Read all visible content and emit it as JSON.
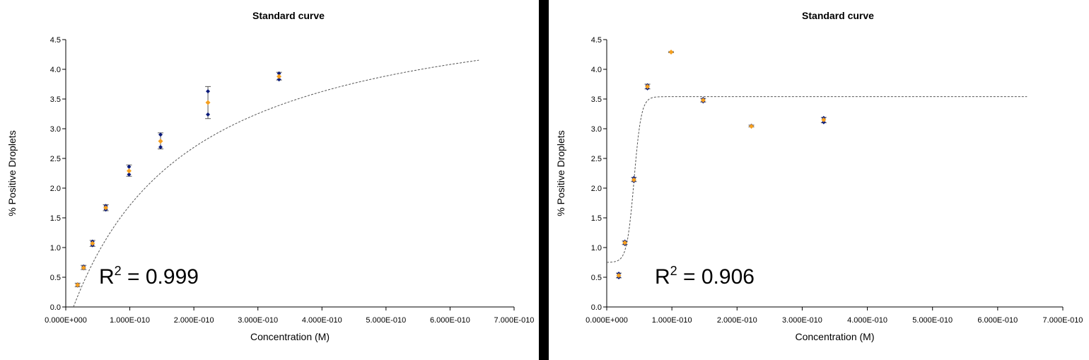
{
  "chart_data": [
    {
      "type": "scatter",
      "title": "Standard curve",
      "xlabel": "Concentration (M)",
      "ylabel": "% Positive Droplets",
      "xlim": [
        0,
        7e-10
      ],
      "ylim": [
        0,
        4.5
      ],
      "xticks": [
        "0.000E+000",
        "1.000E-010",
        "2.000E-010",
        "3.000E-010",
        "4.000E-010",
        "5.000E-010",
        "6.000E-010",
        "7.000E-010"
      ],
      "yticks": [
        "0.0",
        "0.5",
        "1.0",
        "1.5",
        "2.0",
        "2.5",
        "3.0",
        "3.5",
        "4.0",
        "4.5"
      ],
      "annotation": {
        "prefix": "R",
        "superscript": "2",
        "suffix": " = 0.999"
      },
      "colors": {
        "replicate": "#0a1a7a",
        "mean": "#f5a020",
        "fit": "#555555",
        "error_bar": "#555555"
      },
      "series": [
        {
          "x": [
            1.85e-11,
            2.78e-11,
            4.17e-11,
            6.25e-11,
            9.88e-11,
            1.48e-10,
            2.22e-10,
            3.33e-10
          ],
          "replicates": [
            [
              0.38,
              0.36
            ],
            [
              0.68,
              0.65
            ],
            [
              1.1,
              1.04
            ],
            [
              1.7,
              1.64
            ],
            [
              2.36,
              2.23
            ],
            [
              2.9,
              2.69
            ],
            [
              3.63,
              3.24
            ],
            [
              3.93,
              3.83
            ]
          ],
          "mean": [
            0.37,
            0.66,
            1.07,
            1.67,
            2.29,
            2.79,
            3.44,
            3.88
          ],
          "error_low": [
            0.34,
            0.63,
            1.02,
            1.62,
            2.2,
            2.66,
            3.17,
            3.82
          ],
          "error_high": [
            0.4,
            0.7,
            1.12,
            1.72,
            2.39,
            2.93,
            3.71,
            3.95
          ]
        }
      ],
      "fit": {
        "type": "dashed curve",
        "x": [
          1.2e-11,
          6.45e-10
        ],
        "model": "saturation",
        "ymax": 5.4,
        "k": 1.9e-10,
        "offset": 1.2e-11
      }
    },
    {
      "type": "scatter",
      "title": "Standard curve",
      "xlabel": "Concentration (M)",
      "ylabel": "% Positive Droplets",
      "xlim": [
        0,
        7e-10
      ],
      "ylim": [
        0,
        4.5
      ],
      "xticks": [
        "0.000E+000",
        "1.000E-010",
        "2.000E-010",
        "3.000E-010",
        "4.000E-010",
        "5.000E-010",
        "6.000E-010",
        "7.000E-010"
      ],
      "yticks": [
        "0.0",
        "0.5",
        "1.0",
        "1.5",
        "2.0",
        "2.5",
        "3.0",
        "3.5",
        "4.0",
        "4.5"
      ],
      "annotation": {
        "prefix": "R",
        "superscript": "2",
        "suffix": " = 0.906"
      },
      "colors": {
        "replicate": "#0a1a7a",
        "mean": "#f5a020",
        "fit": "#555555",
        "error_bar": "#555555"
      },
      "series": [
        {
          "x": [
            1.85e-11,
            2.78e-11,
            4.17e-11,
            6.25e-11,
            9.88e-11,
            1.48e-10,
            2.22e-10,
            3.33e-10
          ],
          "replicates": [
            [
              0.56,
              0.5
            ],
            [
              1.1,
              1.06
            ],
            [
              2.17,
              2.12
            ],
            [
              3.73,
              3.68
            ],
            [
              4.29,
              4.29
            ],
            [
              3.5,
              3.46
            ],
            [
              3.05,
              3.04
            ],
            [
              3.18,
              3.11
            ]
          ],
          "mean": [
            0.53,
            1.08,
            2.14,
            3.71,
            4.29,
            3.48,
            3.04,
            3.15
          ],
          "error_low": [
            0.49,
            1.05,
            2.11,
            3.67,
            4.28,
            3.45,
            3.03,
            3.1
          ],
          "error_high": [
            0.57,
            1.11,
            2.18,
            3.75,
            4.3,
            3.51,
            3.06,
            3.19
          ]
        }
      ],
      "fit": {
        "type": "dashed curve",
        "x": [
          0,
          6.45e-10
        ],
        "model": "sigmoid",
        "bottom": 0.75,
        "top": 3.54,
        "x50": 4.2e-11,
        "slope": 5.5e-12
      }
    }
  ]
}
